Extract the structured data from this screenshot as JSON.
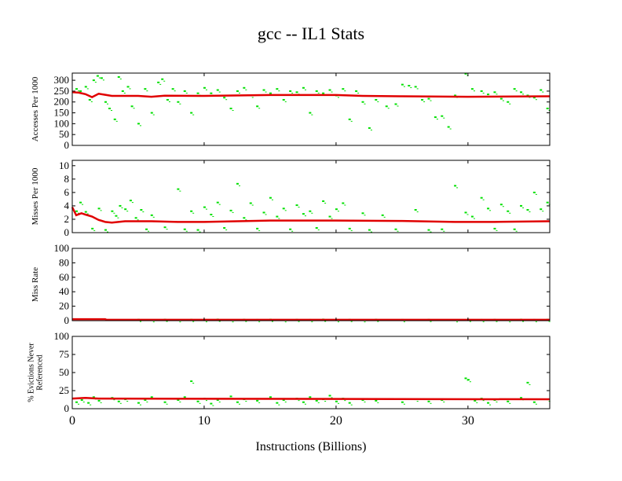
{
  "chart_data": {
    "type": "scatter",
    "title": "gcc -- IL1  Stats",
    "xlabel": "Instructions (Billions)",
    "xlim": [
      0,
      36.2
    ],
    "xticks": [
      0,
      10,
      20,
      30
    ],
    "series_colors": {
      "interval": "#00e000",
      "cumulative": "#e00000"
    },
    "panels": [
      {
        "ylabel": [
          "Accesses Per 1000"
        ],
        "ylim": [
          0,
          333
        ],
        "yticks": [
          0,
          50,
          100,
          150,
          200,
          250,
          300
        ],
        "cumulative": [
          [
            0,
            245
          ],
          [
            0.5,
            243
          ],
          [
            1,
            236
          ],
          [
            1.5,
            222
          ],
          [
            2,
            238
          ],
          [
            2.5,
            233
          ],
          [
            3,
            228
          ],
          [
            5,
            228
          ],
          [
            6,
            224
          ],
          [
            7,
            229
          ],
          [
            10,
            228
          ],
          [
            15,
            232
          ],
          [
            20,
            232
          ],
          [
            22,
            228
          ],
          [
            25,
            226
          ],
          [
            30,
            224
          ],
          [
            36.2,
            226
          ]
        ],
        "interval": [
          [
            0.3,
            260
          ],
          [
            0.6,
            250
          ],
          [
            1,
            270
          ],
          [
            1.3,
            210
          ],
          [
            1.6,
            300
          ],
          [
            1.9,
            320
          ],
          [
            2.2,
            310
          ],
          [
            2.5,
            200
          ],
          [
            2.8,
            170
          ],
          [
            3.2,
            120
          ],
          [
            3.5,
            315
          ],
          [
            3.8,
            250
          ],
          [
            4.2,
            270
          ],
          [
            4.5,
            180
          ],
          [
            5,
            100
          ],
          [
            5.5,
            260
          ],
          [
            6,
            150
          ],
          [
            6.5,
            290
          ],
          [
            6.8,
            305
          ],
          [
            7.2,
            210
          ],
          [
            7.6,
            260
          ],
          [
            8,
            200
          ],
          [
            8.5,
            250
          ],
          [
            9,
            150
          ],
          [
            9.5,
            240
          ],
          [
            10,
            265
          ],
          [
            10.5,
            240
          ],
          [
            11,
            255
          ],
          [
            11.5,
            220
          ],
          [
            12,
            170
          ],
          [
            12.5,
            250
          ],
          [
            13,
            265
          ],
          [
            13.5,
            230
          ],
          [
            14,
            180
          ],
          [
            14.5,
            255
          ],
          [
            15,
            240
          ],
          [
            15.5,
            260
          ],
          [
            16,
            210
          ],
          [
            16.5,
            250
          ],
          [
            17,
            245
          ],
          [
            17.5,
            265
          ],
          [
            18,
            150
          ],
          [
            18.5,
            250
          ],
          [
            19,
            240
          ],
          [
            19.5,
            255
          ],
          [
            20,
            230
          ],
          [
            20.5,
            260
          ],
          [
            21,
            120
          ],
          [
            21.5,
            250
          ],
          [
            22,
            200
          ],
          [
            22.5,
            80
          ],
          [
            23,
            210
          ],
          [
            23.8,
            180
          ],
          [
            24.5,
            190
          ],
          [
            25,
            280
          ],
          [
            25.5,
            275
          ],
          [
            26,
            270
          ],
          [
            26.5,
            210
          ],
          [
            27,
            215
          ],
          [
            27.5,
            130
          ],
          [
            28,
            135
          ],
          [
            28.5,
            85
          ],
          [
            29,
            230
          ],
          [
            29.8,
            330
          ],
          [
            30.3,
            260
          ],
          [
            31,
            250
          ],
          [
            31.5,
            235
          ],
          [
            32,
            245
          ],
          [
            32.5,
            215
          ],
          [
            33,
            200
          ],
          [
            33.5,
            260
          ],
          [
            34,
            245
          ],
          [
            34.5,
            230
          ],
          [
            35,
            220
          ],
          [
            35.5,
            255
          ],
          [
            36,
            170
          ]
        ]
      },
      {
        "ylabel": [
          "Misses Per 1000"
        ],
        "ylim": [
          0,
          10.8
        ],
        "yticks": [
          0,
          2,
          4,
          6,
          8,
          10
        ],
        "cumulative": [
          [
            0,
            3.8
          ],
          [
            0.3,
            2.6
          ],
          [
            0.7,
            2.9
          ],
          [
            1,
            2.7
          ],
          [
            1.5,
            2.4
          ],
          [
            2,
            1.9
          ],
          [
            2.5,
            1.6
          ],
          [
            3,
            1.5
          ],
          [
            4,
            1.7
          ],
          [
            6,
            1.7
          ],
          [
            8,
            1.6
          ],
          [
            10,
            1.6
          ],
          [
            15,
            1.8
          ],
          [
            20,
            1.8
          ],
          [
            25,
            1.75
          ],
          [
            29,
            1.6
          ],
          [
            32,
            1.6
          ],
          [
            36.2,
            1.7
          ]
        ],
        "interval": [
          [
            0.3,
            3.2
          ],
          [
            0.6,
            4.5
          ],
          [
            1,
            3.1
          ],
          [
            1.5,
            0.6
          ],
          [
            2,
            3.6
          ],
          [
            2.5,
            0.4
          ],
          [
            3,
            3.2
          ],
          [
            3.3,
            2.5
          ],
          [
            3.6,
            4
          ],
          [
            4,
            3.5
          ],
          [
            4.4,
            4.8
          ],
          [
            4.8,
            2.2
          ],
          [
            5.2,
            3.4
          ],
          [
            5.6,
            0.5
          ],
          [
            6,
            2.6
          ],
          [
            7,
            0.8
          ],
          [
            8,
            6.5
          ],
          [
            8.5,
            0.5
          ],
          [
            9,
            3.2
          ],
          [
            9.5,
            0.4
          ],
          [
            10,
            3.8
          ],
          [
            10.5,
            2.7
          ],
          [
            11,
            4.5
          ],
          [
            11.5,
            0.7
          ],
          [
            12,
            3.3
          ],
          [
            12.5,
            7.3
          ],
          [
            13,
            2.2
          ],
          [
            13.5,
            4.4
          ],
          [
            14,
            0.6
          ],
          [
            14.5,
            3
          ],
          [
            15,
            5.2
          ],
          [
            15.5,
            2.4
          ],
          [
            16,
            3.6
          ],
          [
            16.5,
            0.5
          ],
          [
            17,
            4.1
          ],
          [
            17.5,
            2.8
          ],
          [
            18,
            3.2
          ],
          [
            18.5,
            0.7
          ],
          [
            19,
            4.7
          ],
          [
            19.5,
            2.4
          ],
          [
            20,
            3.5
          ],
          [
            20.5,
            4.4
          ],
          [
            21,
            0.6
          ],
          [
            22,
            2.9
          ],
          [
            22.5,
            0.4
          ],
          [
            23.5,
            2.6
          ],
          [
            24.5,
            0.5
          ],
          [
            26,
            3.4
          ],
          [
            27,
            0.4
          ],
          [
            28,
            0.5
          ],
          [
            29,
            7
          ],
          [
            29.8,
            3
          ],
          [
            30.3,
            2.4
          ],
          [
            31,
            5.2
          ],
          [
            31.5,
            3.6
          ],
          [
            32,
            0.6
          ],
          [
            32.5,
            4.2
          ],
          [
            33,
            3.2
          ],
          [
            33.5,
            0.5
          ],
          [
            34,
            4
          ],
          [
            34.5,
            3.4
          ],
          [
            35,
            6
          ],
          [
            35.5,
            3.5
          ],
          [
            36,
            4.5
          ]
        ]
      },
      {
        "ylabel": [
          "Miss Rate"
        ],
        "ylim": [
          0,
          100
        ],
        "yticks": [
          0,
          20,
          40,
          60,
          80,
          100
        ],
        "cumulative": [
          [
            0,
            2
          ],
          [
            2.5,
            2
          ],
          [
            2.6,
            1.2
          ],
          [
            36.2,
            1.2
          ]
        ],
        "interval": [
          [
            5,
            1.5
          ],
          [
            6,
            1
          ],
          [
            7,
            1.6
          ],
          [
            8,
            1
          ],
          [
            9,
            1.4
          ],
          [
            10,
            1.2
          ],
          [
            11,
            1.7
          ],
          [
            12,
            1
          ],
          [
            13,
            1.5
          ],
          [
            14,
            1.2
          ],
          [
            15,
            1.6
          ],
          [
            16,
            1
          ],
          [
            17,
            1.4
          ],
          [
            18,
            1.2
          ],
          [
            19,
            1.7
          ],
          [
            20,
            1.1
          ],
          [
            21,
            1.4
          ],
          [
            22,
            1
          ],
          [
            23,
            1.5
          ],
          [
            25,
            1.2
          ],
          [
            27,
            1.4
          ],
          [
            29,
            1
          ],
          [
            30,
            1.5
          ],
          [
            31,
            1.2
          ],
          [
            32,
            1.4
          ],
          [
            33,
            1
          ],
          [
            34,
            1.6
          ],
          [
            35,
            1.2
          ],
          [
            36,
            1.5
          ]
        ]
      },
      {
        "ylabel": [
          "% Evictions Never",
          "Referenced"
        ],
        "ylim": [
          0,
          100
        ],
        "yticks": [
          0,
          25,
          50,
          75,
          100
        ],
        "cumulative": [
          [
            0,
            14
          ],
          [
            1,
            15
          ],
          [
            2,
            14
          ],
          [
            36.2,
            13
          ]
        ],
        "interval": [
          [
            0.3,
            9
          ],
          [
            0.7,
            12
          ],
          [
            1.2,
            8
          ],
          [
            1.6,
            16
          ],
          [
            2,
            11
          ],
          [
            3,
            15
          ],
          [
            3.5,
            10
          ],
          [
            4,
            13
          ],
          [
            5,
            8
          ],
          [
            5.5,
            12
          ],
          [
            6,
            16
          ],
          [
            7,
            9
          ],
          [
            8,
            12
          ],
          [
            8.5,
            16
          ],
          [
            9,
            38
          ],
          [
            9.5,
            10
          ],
          [
            10,
            14
          ],
          [
            10.5,
            7
          ],
          [
            11,
            12
          ],
          [
            12,
            17
          ],
          [
            12.5,
            9
          ],
          [
            13,
            13
          ],
          [
            14,
            11
          ],
          [
            15,
            16
          ],
          [
            15.5,
            8
          ],
          [
            16,
            12
          ],
          [
            17,
            14
          ],
          [
            17.5,
            9
          ],
          [
            18,
            16
          ],
          [
            18.5,
            11
          ],
          [
            19,
            13
          ],
          [
            19.5,
            18
          ],
          [
            20,
            10
          ],
          [
            20.5,
            14
          ],
          [
            21,
            8
          ],
          [
            22,
            12
          ],
          [
            23,
            11
          ],
          [
            25,
            9
          ],
          [
            26,
            13
          ],
          [
            27,
            10
          ],
          [
            28,
            12
          ],
          [
            29.8,
            42
          ],
          [
            30,
            40
          ],
          [
            30.5,
            11
          ],
          [
            31,
            14
          ],
          [
            31.5,
            8
          ],
          [
            32,
            12
          ],
          [
            33,
            10
          ],
          [
            34,
            15
          ],
          [
            34.5,
            36
          ],
          [
            35,
            9
          ],
          [
            36,
            13
          ]
        ]
      }
    ]
  }
}
